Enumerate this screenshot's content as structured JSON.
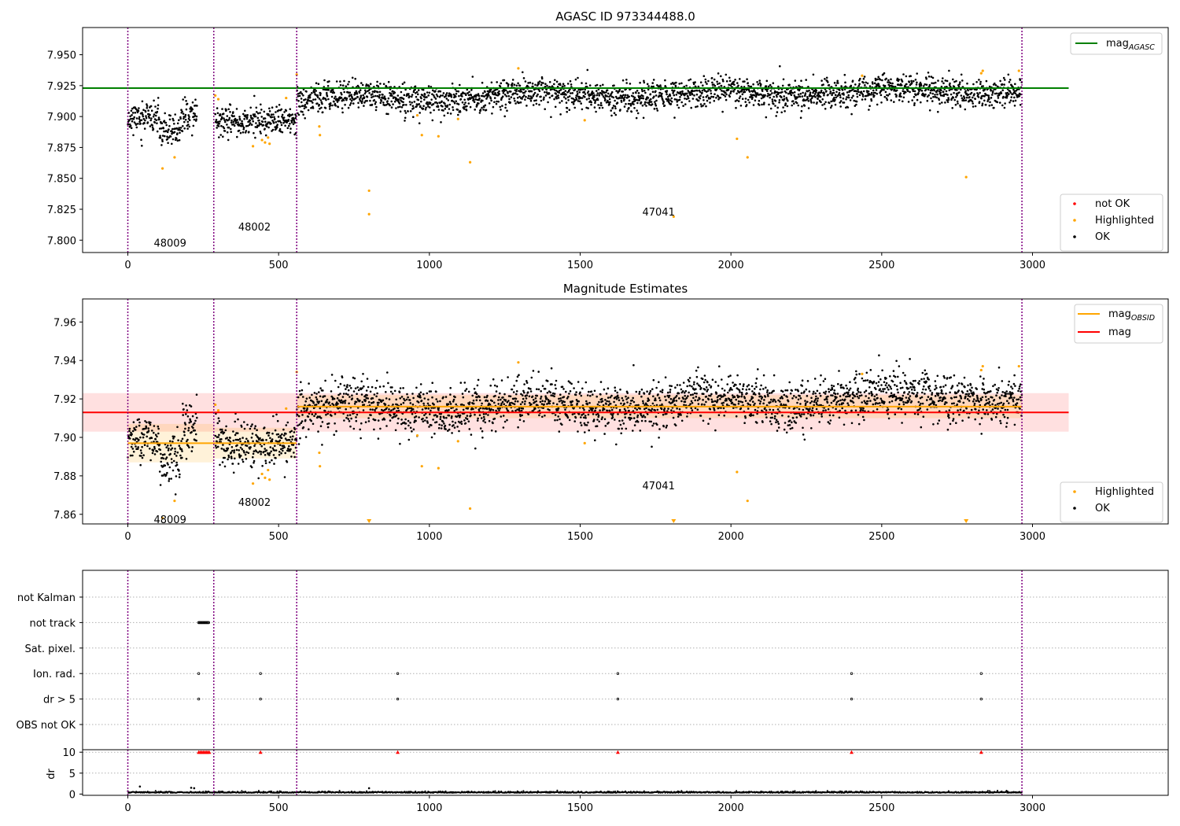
{
  "figure": {
    "title": "AGASC ID 973344488.0",
    "colors": {
      "ok": "#000000",
      "highlighted": "#ffa500",
      "not_ok": "#ff0000",
      "agasc_line": "#008000",
      "obsid_line": "#ffa500",
      "mag_line": "#ff0000",
      "obs_boundary": "#800080"
    }
  },
  "chart_data": [
    {
      "type": "scatter",
      "title": "AGASC ID 973344488.0",
      "xlim": [
        -150,
        3450
      ],
      "ylim": [
        7.79,
        7.972
      ],
      "x_ticks": [
        0,
        500,
        1000,
        1500,
        2000,
        2500,
        3000
      ],
      "y_ticks": [
        7.8,
        7.825,
        7.85,
        7.875,
        7.9,
        7.925,
        7.95
      ],
      "y_tick_labels": [
        "7.800",
        "7.825",
        "7.850",
        "7.875",
        "7.900",
        "7.925",
        "7.950"
      ],
      "obs_boundaries": [
        0,
        285,
        560,
        2965
      ],
      "obs_labels": [
        {
          "text": "48009",
          "x": 140,
          "y": 7.798
        },
        {
          "text": "48002",
          "x": 420,
          "y": 7.811
        },
        {
          "text": "47041",
          "x": 1760,
          "y": 7.823
        }
      ],
      "reference_lines": [
        {
          "name": "mag_AGASC",
          "label_main": "mag",
          "label_sub": "AGASC",
          "y": 7.923,
          "x_range": [
            -150,
            3120
          ]
        }
      ],
      "ok_segments": [
        {
          "x_range": [
            0,
            105
          ],
          "mean": 7.899,
          "scatter": 0.006
        },
        {
          "x_range": [
            105,
            180
          ],
          "mean": 7.888,
          "scatter": 0.006
        },
        {
          "x_range": [
            180,
            230
          ],
          "mean": 7.903,
          "scatter": 0.008
        },
        {
          "x_range": [
            290,
            560
          ],
          "mean": 7.896,
          "scatter": 0.006
        },
        {
          "x_range": [
            560,
            2965
          ],
          "mean_start": 7.914,
          "mean_end": 7.922,
          "scatter": 0.006
        }
      ],
      "highlighted_points": [
        [
          115,
          7.858
        ],
        [
          155,
          7.867
        ],
        [
          290,
          7.917
        ],
        [
          300,
          7.914
        ],
        [
          415,
          7.876
        ],
        [
          445,
          7.881
        ],
        [
          455,
          7.879
        ],
        [
          465,
          7.883
        ],
        [
          470,
          7.878
        ],
        [
          525,
          7.915
        ],
        [
          560,
          7.934
        ],
        [
          635,
          7.892
        ],
        [
          637,
          7.885
        ],
        [
          800,
          7.84
        ],
        [
          800,
          7.821
        ],
        [
          960,
          7.901
        ],
        [
          975,
          7.885
        ],
        [
          1030,
          7.884
        ],
        [
          1095,
          7.898
        ],
        [
          1135,
          7.863
        ],
        [
          1295,
          7.939
        ],
        [
          1515,
          7.897
        ],
        [
          1810,
          7.819
        ],
        [
          2020,
          7.882
        ],
        [
          2055,
          7.867
        ],
        [
          2435,
          7.933
        ],
        [
          2780,
          7.851
        ],
        [
          2830,
          7.935
        ],
        [
          2835,
          7.937
        ],
        [
          2955,
          7.937
        ]
      ],
      "legend": {
        "upper": [
          {
            "label_main": "mag",
            "label_sub": "AGASC",
            "color": "#008000"
          }
        ],
        "lower": [
          {
            "label": "not OK",
            "color": "#ff0000"
          },
          {
            "label": "Highlighted",
            "color": "#ffa500"
          },
          {
            "label": "OK",
            "color": "#000000"
          }
        ]
      }
    },
    {
      "type": "scatter",
      "title": "Magnitude Estimates",
      "xlim": [
        -150,
        3450
      ],
      "ylim": [
        7.855,
        7.972
      ],
      "x_ticks": [
        0,
        500,
        1000,
        1500,
        2000,
        2500,
        3000
      ],
      "y_ticks": [
        7.86,
        7.88,
        7.9,
        7.92,
        7.94,
        7.96
      ],
      "y_tick_labels": [
        "7.86",
        "7.88",
        "7.90",
        "7.92",
        "7.94",
        "7.96"
      ],
      "obs_boundaries": [
        0,
        285,
        560,
        2965
      ],
      "obs_labels": [
        {
          "text": "48009",
          "x": 140,
          "y": 7.8575
        },
        {
          "text": "48002",
          "x": 420,
          "y": 7.8665
        },
        {
          "text": "47041",
          "x": 1760,
          "y": 7.875
        }
      ],
      "mag": {
        "value": 7.913,
        "band": [
          7.903,
          7.923
        ],
        "x_range": [
          -150,
          3120
        ]
      },
      "mag_obsid": [
        {
          "obsid": "48009",
          "x_range": [
            0,
            285
          ],
          "value": 7.897,
          "band": [
            7.887,
            7.907
          ]
        },
        {
          "obsid": "48002",
          "x_range": [
            285,
            560
          ],
          "value": 7.897,
          "band": [
            7.889,
            7.905
          ]
        },
        {
          "obsid": "47041",
          "x_range": [
            560,
            2965
          ],
          "value": 7.916,
          "band": [
            7.91,
            7.922
          ]
        }
      ],
      "clipped_markers_x": [
        800,
        1810,
        2780
      ],
      "legend": {
        "upper": [
          {
            "label_main": "mag",
            "label_sub": "OBSID",
            "color": "#ffa500"
          },
          {
            "label_main": "mag",
            "label_sub": "",
            "color": "#ff0000"
          }
        ],
        "lower": [
          {
            "label": "Highlighted",
            "color": "#ffa500"
          },
          {
            "label": "OK",
            "color": "#000000"
          }
        ]
      }
    },
    {
      "type": "scatter",
      "title": "",
      "xlim": [
        -150,
        3450
      ],
      "x_ticks": [
        0,
        500,
        1000,
        1500,
        2000,
        2500,
        3000
      ],
      "obs_boundaries": [
        0,
        285,
        560,
        2965
      ],
      "flag_rows": [
        "not Kalman",
        "not track",
        "Sat. pixel.",
        "Ion. rad.",
        "dr > 5",
        "OBS not OK"
      ],
      "flag_points": {
        "not track": {
          "x_range": [
            235,
            270
          ]
        },
        "Ion. rad.": [
          235,
          440,
          895,
          1625,
          2400,
          2830
        ],
        "dr > 5": [
          235,
          440,
          895,
          1625,
          2400,
          2830
        ]
      },
      "dr": {
        "ylabel": "dr",
        "ylim": [
          -0.3,
          10.6
        ],
        "y_ticks": [
          0,
          5,
          10
        ],
        "y_tick_labels": [
          "0",
          "5",
          "10"
        ],
        "clipped_x": [
          235,
          240,
          245,
          250,
          255,
          260,
          265,
          270,
          440,
          895,
          1625,
          2400,
          2830
        ],
        "outliers": [
          [
            40,
            1.8
          ],
          [
            210,
            1.5
          ],
          [
            220,
            1.4
          ],
          [
            800,
            1.4
          ]
        ],
        "typical_value": 0.3
      }
    }
  ]
}
